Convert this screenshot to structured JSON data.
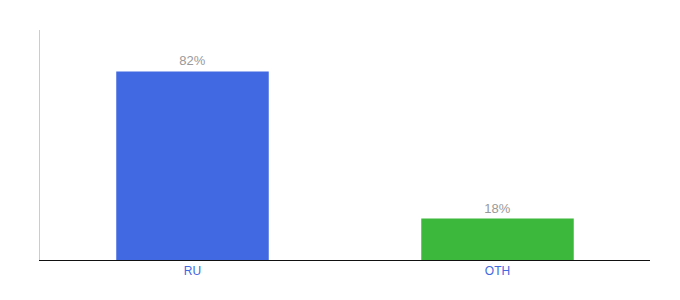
{
  "chart_data": {
    "type": "bar",
    "categories": [
      "RU",
      "OTH"
    ],
    "values": [
      82,
      18
    ],
    "value_labels": [
      "82%",
      "18%"
    ],
    "colors": [
      "#4169e1",
      "#3cb83c"
    ],
    "ylim": [
      0,
      100
    ],
    "grid": false,
    "data_labels": true,
    "tick_labels": "x"
  }
}
